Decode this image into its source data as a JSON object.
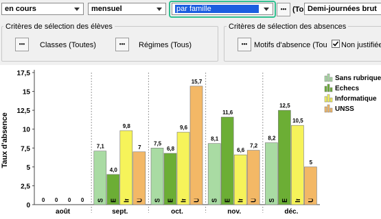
{
  "toolbar": {
    "period": "en cours",
    "frequency": "mensuel",
    "grouping": "par famille",
    "more": "•••",
    "partial": "(To",
    "unit": "Demi-journées brut"
  },
  "students_criteria": {
    "title": "Critères de sélection des élèves",
    "classes_button": "•••",
    "classes": "Classes (Toutes)",
    "regimes_button": "•••",
    "regimes": "Régimes (Tous)"
  },
  "absence_criteria": {
    "title": "Critères de sélection des absences",
    "motifs_button": "•••",
    "motifs": "Motifs d'absence (Tou",
    "non_justified": "Non justifiées",
    "non_justified_checked": true
  },
  "chart_data": {
    "type": "bar",
    "y_label": "Taux d'absence",
    "categories": [
      "août",
      "sept.",
      "oct.",
      "nov.",
      "déc."
    ],
    "series": [
      {
        "name": "Sans rubrique",
        "color": "#a9dba3",
        "values": [
          0,
          7.1,
          7.5,
          8.1,
          8.2
        ],
        "value_labels": [
          "0",
          "7,1",
          "7,5",
          "8,1",
          "8,2"
        ]
      },
      {
        "name": "Echecs",
        "color": "#6cae35",
        "values": [
          0,
          4.0,
          6.8,
          11.6,
          12.5
        ],
        "value_labels": [
          "0",
          "4,0",
          "6,8",
          "11,6",
          "12,5"
        ]
      },
      {
        "name": "Informatique",
        "color": "#f6f35a",
        "values": [
          0,
          9.8,
          9.6,
          6.6,
          10.5
        ],
        "value_labels": [
          "0",
          "9,8",
          "9,6",
          "6,6",
          "10,5"
        ]
      },
      {
        "name": "UNSS",
        "color": "#f3b866",
        "values": [
          0,
          7,
          15.7,
          7.2,
          5
        ],
        "value_labels": [
          "0",
          "7",
          "15,7",
          "7,2",
          "5"
        ]
      }
    ],
    "ylim": [
      0,
      17.5
    ],
    "yticks": [
      0,
      {
        "value": 2.5,
        "label": "2,5"
      },
      5,
      {
        "value": 7.5,
        "label": "7,5"
      },
      10,
      {
        "value": 12.5,
        "label": "12,5"
      },
      15,
      {
        "value": 17.5,
        "label": "17,5"
      }
    ],
    "grid": false,
    "legend": "right"
  }
}
